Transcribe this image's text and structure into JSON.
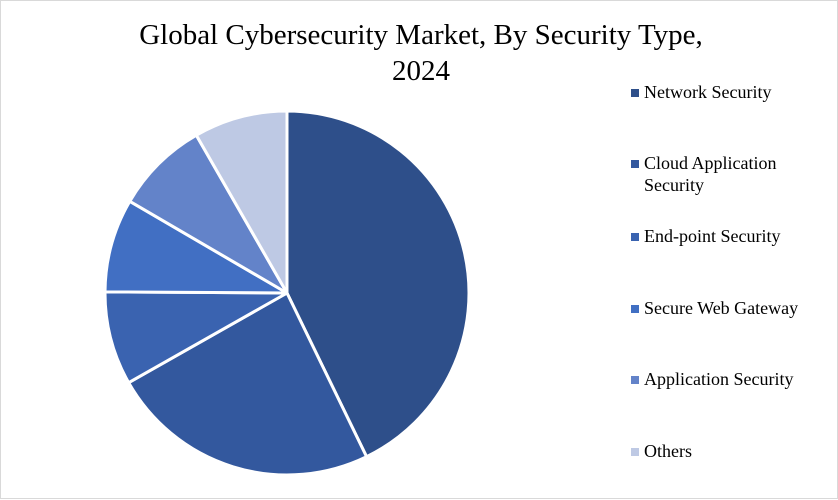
{
  "chart_data": {
    "type": "pie",
    "title": "Global Cybersecurity Market, By Security Type, 2024",
    "title_lines": [
      "Global Cybersecurity Market, By Security Type,",
      "2024"
    ],
    "legend_position": "right",
    "slices": [
      {
        "label": "Network Security",
        "value": 42.8,
        "color": "#2e4f8a"
      },
      {
        "label": "Cloud Application Security",
        "value": 24.0,
        "color": "#33589e"
      },
      {
        "label": "End-point Security",
        "value": 8.3,
        "color": "#3a63b0"
      },
      {
        "label": "Secure Web Gateway",
        "value": 8.3,
        "color": "#416fc3"
      },
      {
        "label": "Application Security",
        "value": 8.3,
        "color": "#6383c9"
      },
      {
        "label": "Others",
        "value": 8.3,
        "color": "#bec9e4"
      }
    ]
  }
}
